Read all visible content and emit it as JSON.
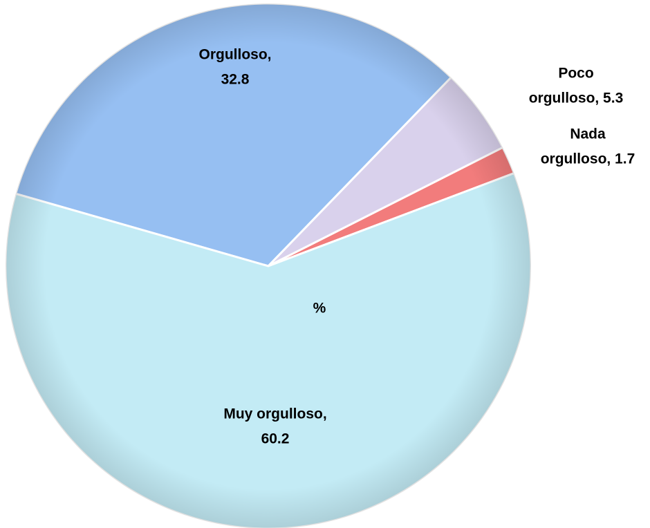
{
  "chart_data": {
    "type": "pie",
    "center_label": "%",
    "categories": [
      "Orgulloso",
      "Poco orgulloso",
      "Nada orgulloso",
      "Muy orgulloso"
    ],
    "values": [
      32.8,
      5.3,
      1.7,
      60.2
    ],
    "value_labels": [
      [
        "Orgulloso,",
        "32.8"
      ],
      [
        "Poco",
        "orgulloso, 5.3"
      ],
      [
        "Nada",
        "orgulloso, 1.7"
      ],
      [
        "Muy orgulloso,",
        "60.2"
      ]
    ],
    "colors": [
      "#96bff2",
      "#d9d1ec",
      "#f27c7c",
      "#c3ebf5"
    ]
  }
}
